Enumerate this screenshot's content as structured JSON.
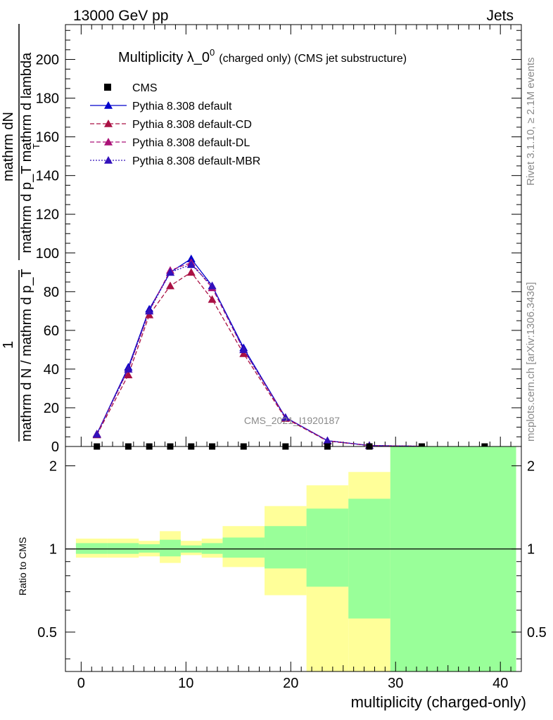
{
  "header": {
    "left": "13000 GeV pp",
    "right": "Jets"
  },
  "side_labels": {
    "rivet": "Rivet 3.1.10, ≥ 2.1M events",
    "mcplots": "mcplots.cern.ch [arXiv:1306.3436]"
  },
  "watermark": "CMS_2021_I1920187",
  "chart_data": [
    {
      "type": "line",
      "title_main": "Multiplicity λ_0",
      "title_sup": "0",
      "title_tail": "(charged only) (CMS jet substructure)",
      "ylabel_top": "mathrm dN",
      "ylabel_mid": "mathrm d p_T mathrm d lambda",
      "ylabel_sub": "T",
      "ylabel_one": "1",
      "ylabel_bottom": "mathrm d N / mathrm d p_T",
      "ylim": [
        0,
        218
      ],
      "xlim": [
        -1.5,
        42
      ],
      "yticks": [
        "0",
        "20",
        "40",
        "60",
        "80",
        "100",
        "120",
        "140",
        "160",
        "180",
        "200"
      ],
      "legend": [
        {
          "label": "CMS",
          "marker": "square",
          "color": "#000000",
          "dash": ""
        },
        {
          "label": "Pythia 8.308 default",
          "marker": "triangle",
          "color": "#0000cc",
          "dash": ""
        },
        {
          "label": "Pythia 8.308 default-CD",
          "marker": "triangle",
          "color": "#aa1144",
          "dash": "6,3"
        },
        {
          "label": "Pythia 8.308 default-DL",
          "marker": "triangle",
          "color": "#aa1177",
          "dash": "6,3"
        },
        {
          "label": "Pythia 8.308 default-MBR",
          "marker": "triangle",
          "color": "#3311bb",
          "dash": "2,2"
        }
      ],
      "data_x": [
        1.5,
        4.5,
        6.5,
        8.5,
        10.5,
        12.5,
        15.5,
        19.5,
        23.5,
        27.5,
        32.5,
        38.5
      ],
      "data_y": [
        0,
        0,
        0,
        0,
        0,
        0,
        0,
        0,
        0,
        0,
        0,
        0
      ],
      "series": [
        {
          "name": "Pythia 8.308 default",
          "x": [
            1.5,
            4.5,
            6.5,
            8.5,
            10.5,
            12.5,
            15.5,
            19.5,
            23.5,
            27.5,
            32.5
          ],
          "y": [
            6.5,
            41,
            71,
            90,
            97,
            83,
            51,
            15,
            3,
            0.5,
            0.1
          ]
        },
        {
          "name": "Pythia 8.308 default-CD",
          "x": [
            1.5,
            4.5,
            6.5,
            8.5,
            10.5,
            12.5,
            15.5,
            19.5,
            23.5,
            27.5,
            32.5
          ],
          "y": [
            6,
            37,
            68,
            83,
            90,
            76,
            48,
            14.5,
            2.8,
            0.5,
            0.1
          ]
        },
        {
          "name": "Pythia 8.308 default-DL",
          "x": [
            1.5,
            4.5,
            6.5,
            8.5,
            10.5,
            12.5,
            15.5,
            19.5,
            23.5,
            27.5,
            32.5
          ],
          "y": [
            6.5,
            40,
            70,
            91,
            95,
            82,
            50,
            15,
            3,
            0.5,
            0.1
          ]
        },
        {
          "name": "Pythia 8.308 default-MBR",
          "x": [
            1.5,
            4.5,
            6.5,
            8.5,
            10.5,
            12.5,
            15.5,
            19.5,
            23.5,
            27.5,
            32.5
          ],
          "y": [
            6.3,
            40,
            70,
            90,
            94,
            83,
            50,
            15,
            3,
            0.5,
            0.1
          ]
        }
      ]
    },
    {
      "type": "area",
      "ylabel": "Ratio to CMS",
      "xlabel": "multiplicity (charged-only)",
      "ylim": [
        0.36,
        2.35
      ],
      "yscale": "log",
      "xlim": [
        -1.5,
        42
      ],
      "yticks": [
        "0.5",
        "1",
        "2"
      ],
      "xticks": [
        "0",
        "10",
        "20",
        "30",
        "40"
      ],
      "bins": [
        {
          "lo": -0.5,
          "hi": 2.5,
          "inner": [
            0.96,
            1.05
          ],
          "outer": [
            0.93,
            1.09
          ]
        },
        {
          "lo": 2.5,
          "hi": 5.5,
          "inner": [
            0.96,
            1.05
          ],
          "outer": [
            0.93,
            1.09
          ]
        },
        {
          "lo": 5.5,
          "hi": 7.5,
          "inner": [
            0.97,
            1.04
          ],
          "outer": [
            0.94,
            1.07
          ]
        },
        {
          "lo": 7.5,
          "hi": 9.5,
          "inner": [
            0.94,
            1.08
          ],
          "outer": [
            0.89,
            1.16
          ]
        },
        {
          "lo": 9.5,
          "hi": 11.5,
          "inner": [
            0.97,
            1.03
          ],
          "outer": [
            0.95,
            1.07
          ]
        },
        {
          "lo": 11.5,
          "hi": 13.5,
          "inner": [
            0.96,
            1.05
          ],
          "outer": [
            0.93,
            1.09
          ]
        },
        {
          "lo": 13.5,
          "hi": 17.5,
          "inner": [
            0.93,
            1.1
          ],
          "outer": [
            0.86,
            1.21
          ]
        },
        {
          "lo": 17.5,
          "hi": 21.5,
          "inner": [
            0.85,
            1.21
          ],
          "outer": [
            0.68,
            1.43
          ]
        },
        {
          "lo": 21.5,
          "hi": 25.5,
          "inner": [
            0.73,
            1.4
          ],
          "outer": [
            0.33,
            1.7
          ]
        },
        {
          "lo": 25.5,
          "hi": 29.5,
          "inner": [
            0.56,
            1.52
          ],
          "outer": [
            0.33,
            1.9
          ]
        },
        {
          "lo": 29.5,
          "hi": 41.5,
          "inner": [
            0.33,
            2.4
          ],
          "outer": [
            0.33,
            2.4
          ]
        }
      ],
      "band_colors": {
        "inner": "#99ff99",
        "outer": "#ffff99"
      }
    }
  ]
}
